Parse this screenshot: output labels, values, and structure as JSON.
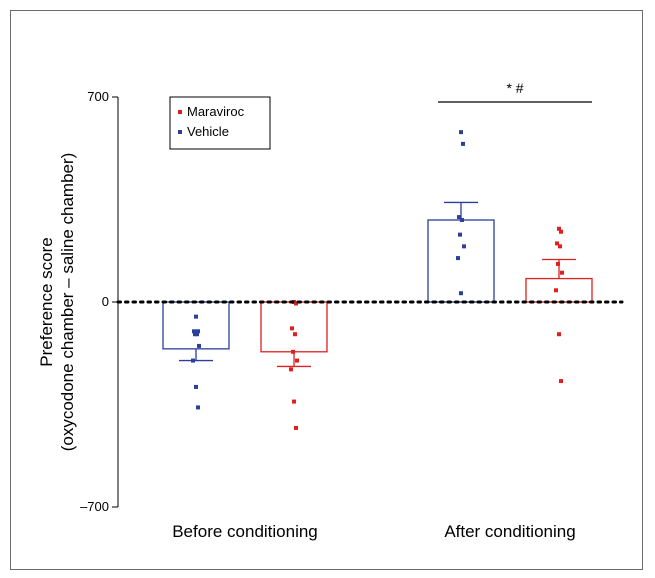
{
  "chart_data": {
    "type": "bar",
    "title": "",
    "ylabel_line1": "Preference score",
    "ylabel_line2": "(oxycodone chamber – saline chamber)",
    "ylim": [
      -700,
      700
    ],
    "yticks": [
      {
        "value": 700,
        "label": "700"
      },
      {
        "value": 0,
        "label": "0"
      },
      {
        "value": -700,
        "label": "–700"
      }
    ],
    "categories": [
      "Before conditioning",
      "After conditioning"
    ],
    "legend": {
      "placement": "top-left",
      "entries": [
        {
          "name": "Maraviroc",
          "color": "#e02020"
        },
        {
          "name": "Vehicle",
          "color": "#2b3f9e"
        }
      ]
    },
    "series": [
      {
        "name": "Vehicle",
        "color": "#2b3f9e",
        "means": [
          -160,
          280
        ],
        "errors": [
          40,
          60
        ],
        "points": [
          [
            -50,
            -100,
            -100,
            -110,
            -110,
            -150,
            -200,
            -290,
            -360
          ],
          [
            580,
            540,
            290,
            280,
            230,
            190,
            150,
            30
          ]
        ]
      },
      {
        "name": "Maraviroc",
        "color": "#e02020",
        "means": [
          -170,
          80
        ],
        "errors": [
          50,
          65
        ],
        "points": [
          [
            0,
            -5,
            -90,
            -110,
            -170,
            -200,
            -230,
            -340,
            -430
          ],
          [
            250,
            240,
            200,
            190,
            130,
            100,
            40,
            -110,
            -270
          ]
        ]
      }
    ],
    "zero_line": "dotted",
    "significance": {
      "category": "After conditioning",
      "label": "* #"
    }
  }
}
